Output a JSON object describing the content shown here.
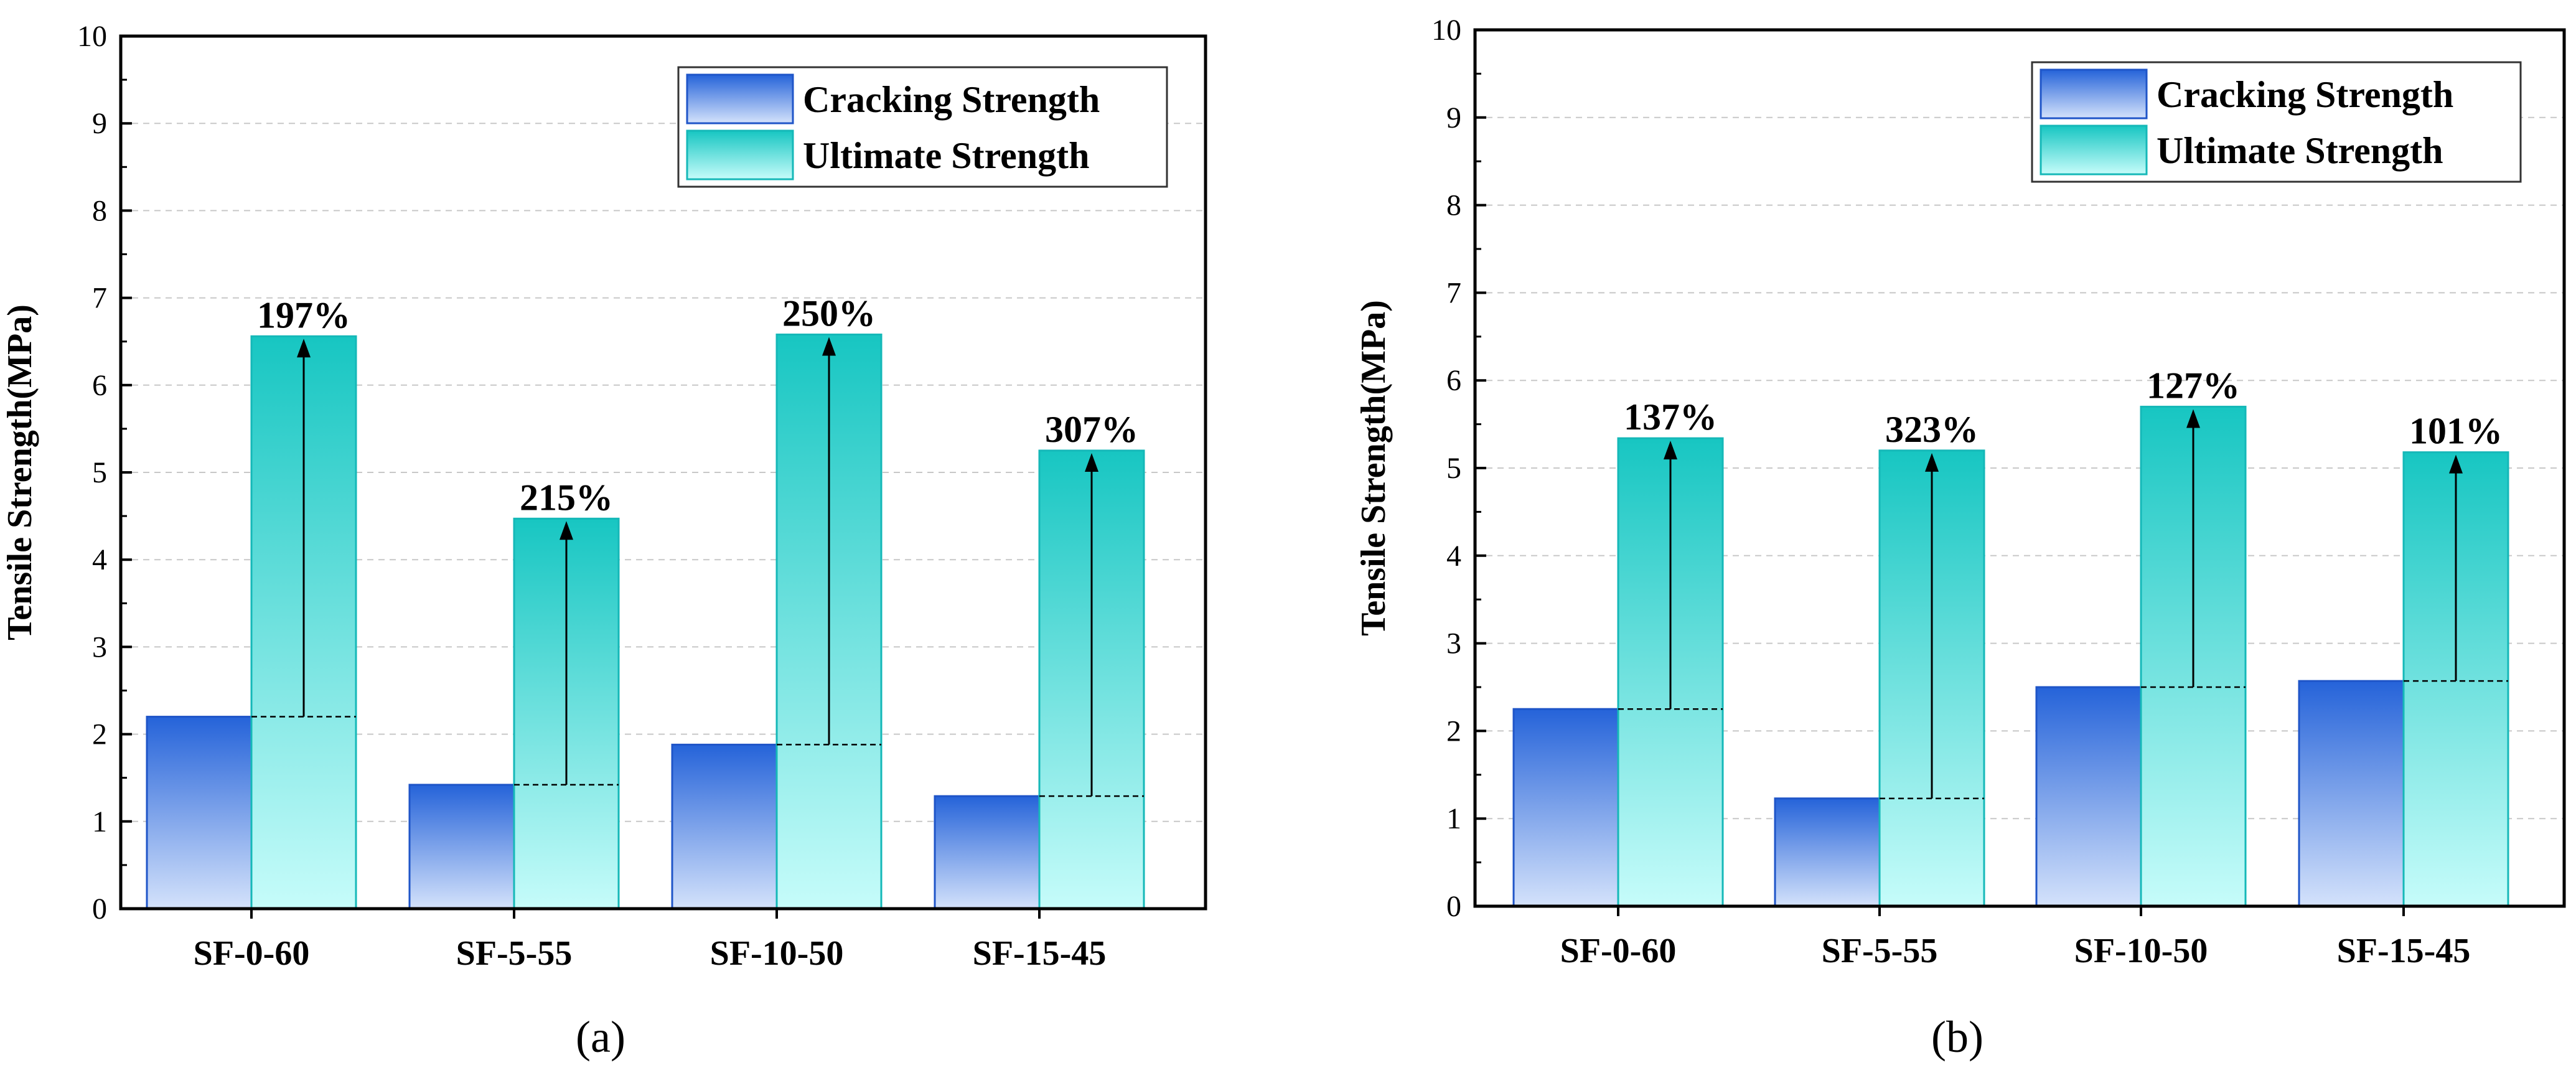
{
  "colors": {
    "cracking_top": "#2563d9",
    "cracking_bottom": "#d4e2fb",
    "cracking_edge": "#1f55c8",
    "ultimate_top": "#17c6c2",
    "ultimate_bottom": "#c6fcfa",
    "ultimate_edge": "#15b8b8",
    "grid": "#c8c8c8",
    "axis": "#000000"
  },
  "chart_data": [
    {
      "type": "bar",
      "caption": "(a)",
      "ylabel": "Tensile Strength(MPa)",
      "xlabel": "",
      "ylim": [
        0,
        10
      ],
      "yticks": [
        "0",
        "1",
        "2",
        "3",
        "4",
        "5",
        "6",
        "7",
        "8",
        "9",
        "10"
      ],
      "grid": true,
      "legend_position": "top-right",
      "categories": [
        "SF-0-60",
        "SF-5-55",
        "SF-10-50",
        "SF-15-45"
      ],
      "series": [
        {
          "name": "Cracking Strength",
          "values": [
            2.2,
            1.42,
            1.88,
            1.29
          ]
        },
        {
          "name": "Ultimate Strength",
          "values": [
            6.56,
            4.47,
            6.58,
            5.25
          ]
        }
      ],
      "annotations": [
        "197%",
        "215%",
        "250%",
        "307%"
      ]
    },
    {
      "type": "bar",
      "caption": "(b)",
      "ylabel": "Tensile Strength(MPa)",
      "xlabel": "",
      "ylim": [
        0,
        10
      ],
      "yticks": [
        "0",
        "1",
        "2",
        "3",
        "4",
        "5",
        "6",
        "7",
        "8",
        "9",
        "10"
      ],
      "grid": true,
      "legend_position": "top-right",
      "categories": [
        "SF-0-60",
        "SF-5-55",
        "SF-10-50",
        "SF-15-45"
      ],
      "series": [
        {
          "name": "Cracking Strength",
          "values": [
            2.25,
            1.23,
            2.5,
            2.57
          ]
        },
        {
          "name": "Ultimate Strength",
          "values": [
            5.34,
            5.2,
            5.7,
            5.18
          ]
        }
      ],
      "annotations": [
        "137%",
        "323%",
        "127%",
        "101%"
      ]
    }
  ]
}
